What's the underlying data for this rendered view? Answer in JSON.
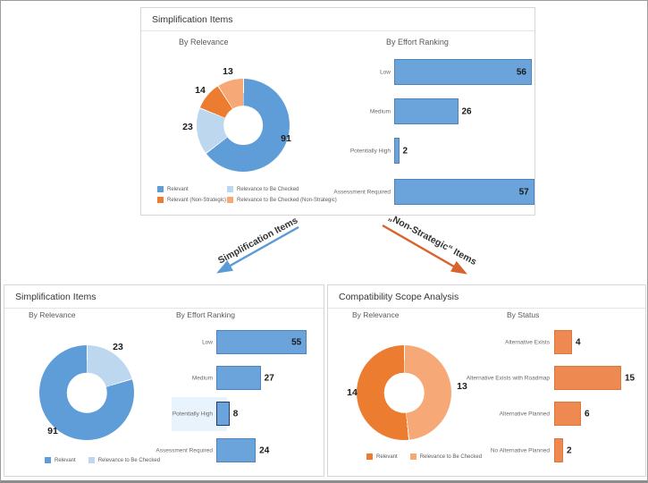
{
  "colors": {
    "blue": "#5f9dd9",
    "light_blue": "#bdd7ee",
    "orange": "#ec7c30",
    "light_orange": "#f6a877",
    "bar_blue": "#6ba3db",
    "bar_orange": "#ee8a51",
    "arrow_blue": "#5b9bd5",
    "arrow_orange": "#d9632c",
    "row_highlight": "#e9f3fb",
    "selected_bar_border": "#1c3d6e"
  },
  "panels": {
    "top": {
      "title": "Simplification Items",
      "relevance": {
        "title": "By Relevance",
        "slices": [
          {
            "label": "Relevant",
            "value": 91,
            "color": "#5f9dd9"
          },
          {
            "label": "Relevance to Be Checked",
            "value": 23,
            "color": "#bdd7ee"
          },
          {
            "label": "Relevant (Non-Strategic)",
            "value": 14,
            "color": "#ec7c30"
          },
          {
            "label": "Relevance to Be Checked (Non-Strategic)",
            "value": 13,
            "color": "#f6a877"
          }
        ],
        "legend": [
          {
            "label": "Relevant",
            "color": "#5f9dd9"
          },
          {
            "label": "Relevance to Be Checked",
            "color": "#bdd7ee"
          },
          {
            "label": "Relevant (Non-Strategic)",
            "color": "#ec7c30"
          },
          {
            "label": "Relevance to Be Checked (Non-Strategic)",
            "color": "#f6a877"
          }
        ]
      },
      "effort": {
        "title": "By Effort Ranking",
        "categories": [
          "Low",
          "Medium",
          "Potentially High",
          "Assessment Required"
        ],
        "values": [
          56,
          26,
          2,
          57
        ]
      }
    },
    "bottom_left": {
      "title": "Simplification Items",
      "relevance": {
        "title": "By Relevance",
        "slices": [
          {
            "label": "Relevance to Be Checked",
            "value": 23,
            "color": "#bdd7ee"
          },
          {
            "label": "Relevant",
            "value": 91,
            "color": "#5f9dd9"
          }
        ],
        "legend": [
          {
            "label": "Relevant",
            "color": "#5f9dd9"
          },
          {
            "label": "Relevance to Be Checked",
            "color": "#bdd7ee"
          }
        ]
      },
      "effort": {
        "title": "By Effort Ranking",
        "categories": [
          "Low",
          "Medium",
          "Potentially High",
          "Assessment Required"
        ],
        "values": [
          55,
          27,
          8,
          24
        ],
        "selected_category": "Potentially High"
      }
    },
    "bottom_right": {
      "title": "Compatibility Scope Analysis",
      "relevance": {
        "title": "By Relevance",
        "slices": [
          {
            "label": "Relevance to Be Checked",
            "value": 13,
            "color": "#f6a877"
          },
          {
            "label": "Relevant",
            "value": 14,
            "color": "#ec7c30"
          }
        ],
        "legend": [
          {
            "label": "Relevant",
            "color": "#ec7c30"
          },
          {
            "label": "Relevance to Be Checked",
            "color": "#f6a877"
          }
        ]
      },
      "status": {
        "title": "By Status",
        "categories": [
          "Alternative Exists",
          "Alternative Exists with Roadmap",
          "Alternative Planned",
          "No Alternative Planned"
        ],
        "values": [
          4,
          15,
          6,
          2
        ]
      }
    }
  },
  "annotations": {
    "left_arrow_label": "Simplification Items",
    "right_arrow_label": "„Non-Strategic“ Items"
  },
  "chart_data": [
    {
      "type": "pie",
      "title": "Simplification Items – By Relevance",
      "labels": [
        "Relevant",
        "Relevance to Be Checked",
        "Relevant (Non-Strategic)",
        "Relevance to Be Checked (Non-Strategic)"
      ],
      "values": [
        91,
        23,
        14,
        13
      ],
      "donut": true,
      "legend_position": "bottom"
    },
    {
      "type": "bar",
      "title": "Simplification Items – By Effort Ranking",
      "orientation": "horizontal",
      "categories": [
        "Low",
        "Medium",
        "Potentially High",
        "Assessment Required"
      ],
      "values": [
        56,
        26,
        2,
        57
      ],
      "grid": false
    },
    {
      "type": "pie",
      "title": "Simplification Items (drill-down) – By Relevance",
      "labels": [
        "Relevance to Be Checked",
        "Relevant"
      ],
      "values": [
        23,
        91
      ],
      "donut": true,
      "legend_position": "bottom"
    },
    {
      "type": "bar",
      "title": "Simplification Items (drill-down) – By Effort Ranking",
      "orientation": "horizontal",
      "categories": [
        "Low",
        "Medium",
        "Potentially High",
        "Assessment Required"
      ],
      "values": [
        55,
        27,
        8,
        24
      ],
      "highlighted_category": "Potentially High",
      "grid": false
    },
    {
      "type": "pie",
      "title": "Compatibility Scope Analysis – By Relevance",
      "labels": [
        "Relevance to Be Checked",
        "Relevant"
      ],
      "values": [
        13,
        14
      ],
      "donut": true,
      "legend_position": "bottom"
    },
    {
      "type": "bar",
      "title": "Compatibility Scope Analysis – By Status",
      "orientation": "horizontal",
      "categories": [
        "Alternative Exists",
        "Alternative Exists with Roadmap",
        "Alternative Planned",
        "No Alternative Planned"
      ],
      "values": [
        4,
        15,
        6,
        2
      ],
      "grid": false
    }
  ]
}
